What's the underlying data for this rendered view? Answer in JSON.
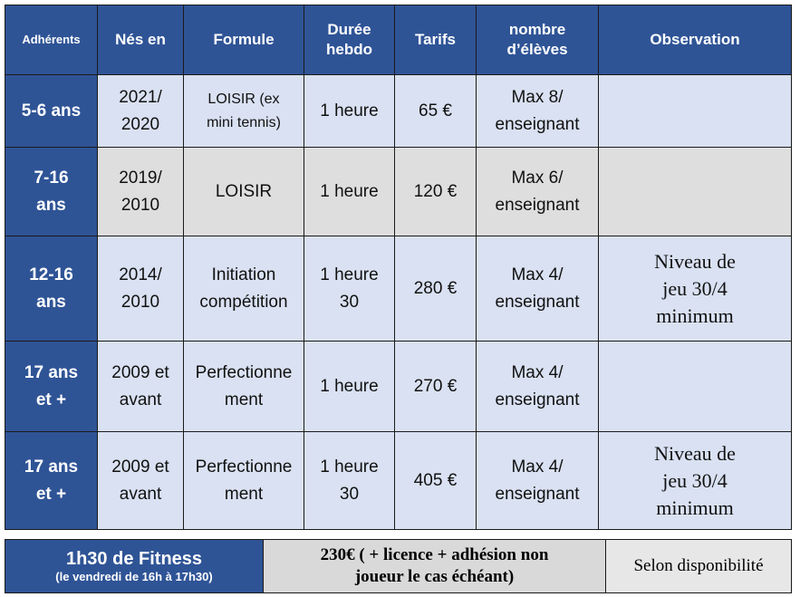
{
  "headers": {
    "adherents": "Adhérents",
    "nes_en": "Nés en",
    "formule": "Formule",
    "duree_1": "Durée",
    "duree_2": "hebdo",
    "tarifs": "Tarifs",
    "nombre_1": "nombre",
    "nombre_2": "d’élèves",
    "observation": "Observation"
  },
  "rows": [
    {
      "age_1": "5-6 ans",
      "age_2": "",
      "nes_1": "2021/",
      "nes_2": "2020",
      "formule_1": "LOISIR (ex",
      "formule_2": "mini tennis)",
      "duree_1": "1 heure",
      "duree_2": "",
      "tarif": "65 €",
      "nombre_1": "Max 8/",
      "nombre_2": "enseignant",
      "obs_1": "",
      "obs_2": "",
      "obs_3": ""
    },
    {
      "age_1": "7-16",
      "age_2": "ans",
      "nes_1": "2019/",
      "nes_2": "2010",
      "formule_1": "LOISIR",
      "formule_2": "",
      "duree_1": "1 heure",
      "duree_2": "",
      "tarif": "120 €",
      "nombre_1": "Max 6/",
      "nombre_2": "enseignant",
      "obs_1": "",
      "obs_2": "",
      "obs_3": ""
    },
    {
      "age_1": "12-16",
      "age_2": "ans",
      "nes_1": "2014/",
      "nes_2": "2010",
      "formule_1": "Initiation",
      "formule_2": "compétition",
      "duree_1": "1 heure",
      "duree_2": "30",
      "tarif": "280 €",
      "nombre_1": "Max 4/",
      "nombre_2": "enseignant",
      "obs_1": "Niveau de",
      "obs_2": "jeu 30/4",
      "obs_3": "minimum"
    },
    {
      "age_1": "17 ans",
      "age_2": "et +",
      "nes_1": "2009 et",
      "nes_2": "avant",
      "formule_1": "Perfectionne",
      "formule_2": "ment",
      "duree_1": "1 heure",
      "duree_2": "",
      "tarif": "270 €",
      "nombre_1": "Max 4/",
      "nombre_2": "enseignant",
      "obs_1": "",
      "obs_2": "",
      "obs_3": ""
    },
    {
      "age_1": "17 ans",
      "age_2": "et +",
      "nes_1": "2009 et",
      "nes_2": "avant",
      "formule_1": "Perfectionne",
      "formule_2": "ment",
      "duree_1": "1 heure",
      "duree_2": "30",
      "tarif": "405 €",
      "nombre_1": "Max 4/",
      "nombre_2": "enseignant",
      "obs_1": "Niveau de",
      "obs_2": "jeu 30/4",
      "obs_3": "minimum"
    }
  ],
  "fitness": {
    "title": "1h30 de Fitness",
    "schedule": "(le vendredi de 16h à 17h30)",
    "price_1": "230€ ( + licence + adhésion non",
    "price_2": "joueur le cas échéant)",
    "availability": "Selon disponibilité"
  },
  "colors": {
    "header_blue": "#2f5496",
    "row_blue": "#d9e1f2",
    "row_gray": "#dedede"
  }
}
